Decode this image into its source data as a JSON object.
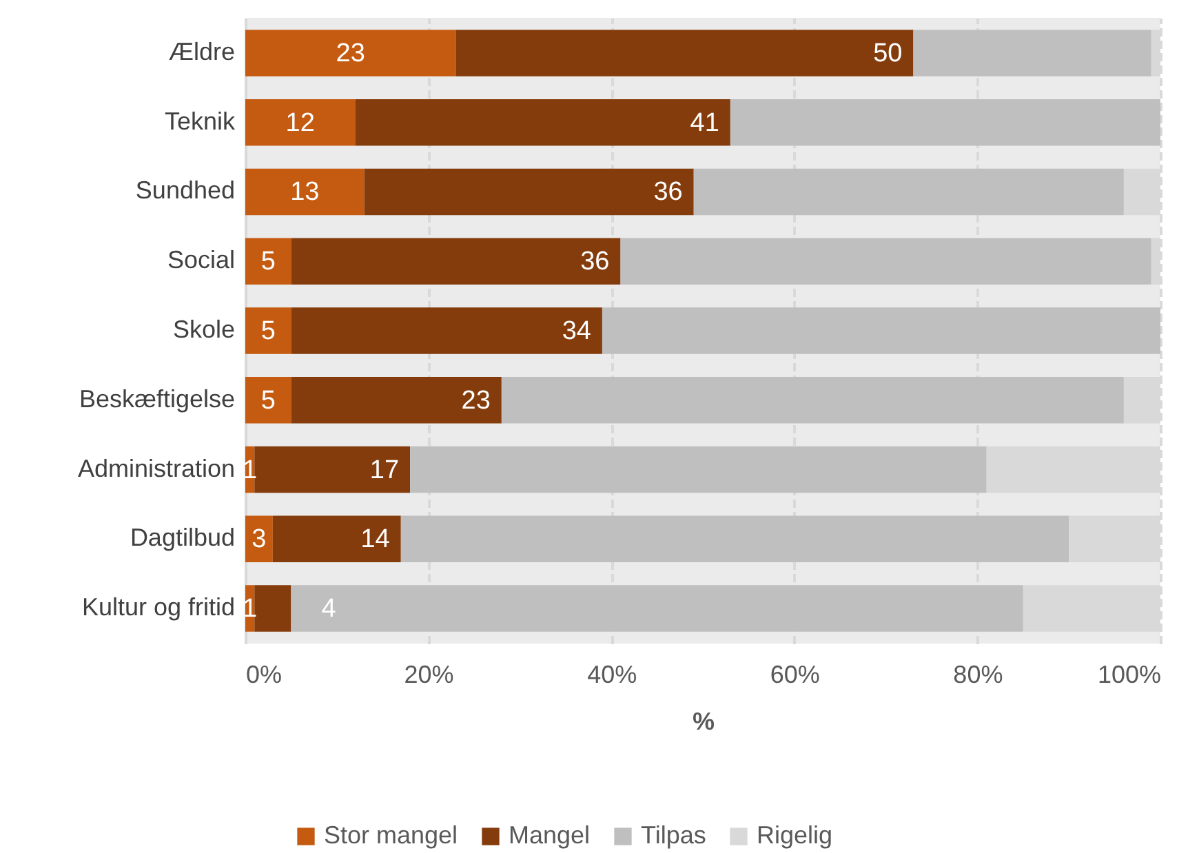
{
  "chart_data": {
    "type": "bar",
    "orientation": "horizontal",
    "stacked": true,
    "categories": [
      "Ældre",
      "Teknik",
      "Sundhed",
      "Social",
      "Skole",
      "Beskæftigelse",
      "Administration",
      "Dagtilbud",
      "Kultur og fritid"
    ],
    "series": [
      {
        "name": "Stor mangel",
        "color": "#c55a11",
        "values": [
          23,
          12,
          13,
          5,
          5,
          5,
          1,
          3,
          1
        ],
        "value_labels": [
          "23",
          "12",
          "13",
          "5",
          "5",
          "5",
          "1",
          "3",
          "1"
        ]
      },
      {
        "name": "Mangel",
        "color": "#843c0c",
        "values": [
          50,
          41,
          36,
          36,
          34,
          23,
          17,
          14,
          4
        ],
        "value_labels": [
          "50",
          "41",
          "36",
          "36",
          "34",
          "23",
          "17",
          "14",
          "4"
        ]
      },
      {
        "name": "Tilpas",
        "color": "#bfbfbf",
        "values": [
          26,
          47,
          47,
          58,
          61,
          68,
          63,
          73,
          80
        ]
      },
      {
        "name": "Rigelig",
        "color": "#d9d9d9",
        "values": [
          1,
          0,
          4,
          1,
          0,
          4,
          19,
          10,
          15
        ]
      }
    ],
    "xlim": [
      0,
      100
    ],
    "xticks": [
      {
        "value": 0,
        "label": "0%"
      },
      {
        "value": 20,
        "label": "20%"
      },
      {
        "value": 40,
        "label": "40%"
      },
      {
        "value": 60,
        "label": "60%"
      },
      {
        "value": 80,
        "label": "80%"
      },
      {
        "value": 100,
        "label": "100%"
      }
    ],
    "xlabel": "%",
    "grid": "x",
    "legend": "bottom"
  }
}
